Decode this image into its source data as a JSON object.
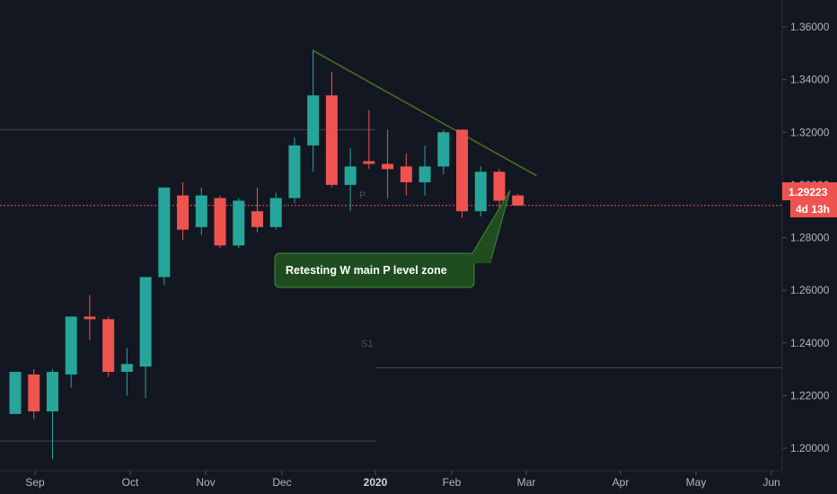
{
  "colors": {
    "background": "#131722",
    "up": "#26a69a",
    "down": "#ef5350",
    "text": "#b2b5be",
    "trendline": "#4a6b1f",
    "callout_fill": "#1f4d1f",
    "callout_border": "#3c8a3c",
    "level_line": "#4a4e59",
    "price_tag": "#ef5350"
  },
  "price_tag": {
    "price": "1.29223",
    "countdown": "4d 13h"
  },
  "annotation": {
    "text": "Retesting W main P level zone"
  },
  "pivot_labels": {
    "p": "P",
    "s1": "S1"
  },
  "chart_data": {
    "type": "candlestick",
    "symbol_period": "weekly",
    "y_axis": {
      "ticks": [
        "1.36000",
        "1.34000",
        "1.32000",
        "1.30000",
        "1.28000",
        "1.26000",
        "1.24000",
        "1.22000",
        "1.20000"
      ],
      "range": [
        1.19,
        1.369
      ],
      "side": "right"
    },
    "x_axis": {
      "ticks": [
        {
          "label": "Sep",
          "bold": false
        },
        {
          "label": "Oct",
          "bold": false
        },
        {
          "label": "Nov",
          "bold": false
        },
        {
          "label": "Dec",
          "bold": false
        },
        {
          "label": "2020",
          "bold": true
        },
        {
          "label": "Feb",
          "bold": false
        },
        {
          "label": "Mar",
          "bold": false
        },
        {
          "label": "Apr",
          "bold": false
        },
        {
          "label": "May",
          "bold": false
        },
        {
          "label": "Jun",
          "bold": false
        }
      ]
    },
    "candles": [
      {
        "week": "2019-08-19",
        "o": 1.213,
        "h": 1.229,
        "l": 1.213,
        "c": 1.229
      },
      {
        "week": "2019-08-26",
        "o": 1.228,
        "h": 1.23,
        "l": 1.211,
        "c": 1.214
      },
      {
        "week": "2019-09-02",
        "o": 1.214,
        "h": 1.23,
        "l": 1.1958,
        "c": 1.229
      },
      {
        "week": "2019-09-09",
        "o": 1.228,
        "h": 1.25,
        "l": 1.223,
        "c": 1.25
      },
      {
        "week": "2019-09-16",
        "o": 1.25,
        "h": 1.2582,
        "l": 1.241,
        "c": 1.249
      },
      {
        "week": "2019-09-23",
        "o": 1.249,
        "h": 1.25,
        "l": 1.227,
        "c": 1.229
      },
      {
        "week": "2019-09-30",
        "o": 1.229,
        "h": 1.238,
        "l": 1.22,
        "c": 1.232
      },
      {
        "week": "2019-10-07",
        "o": 1.231,
        "h": 1.265,
        "l": 1.219,
        "c": 1.265
      },
      {
        "week": "2019-10-14",
        "o": 1.265,
        "h": 1.299,
        "l": 1.262,
        "c": 1.299
      },
      {
        "week": "2019-10-21",
        "o": 1.296,
        "h": 1.301,
        "l": 1.279,
        "c": 1.283
      },
      {
        "week": "2019-10-28",
        "o": 1.284,
        "h": 1.299,
        "l": 1.281,
        "c": 1.296
      },
      {
        "week": "2019-11-04",
        "o": 1.295,
        "h": 1.296,
        "l": 1.276,
        "c": 1.277
      },
      {
        "week": "2019-11-11",
        "o": 1.277,
        "h": 1.295,
        "l": 1.276,
        "c": 1.294
      },
      {
        "week": "2019-11-18",
        "o": 1.29,
        "h": 1.299,
        "l": 1.282,
        "c": 1.284
      },
      {
        "week": "2019-11-25",
        "o": 1.284,
        "h": 1.297,
        "l": 1.283,
        "c": 1.295
      },
      {
        "week": "2019-12-02",
        "o": 1.295,
        "h": 1.318,
        "l": 1.293,
        "c": 1.315
      },
      {
        "week": "2019-12-09",
        "o": 1.315,
        "h": 1.3514,
        "l": 1.305,
        "c": 1.334
      },
      {
        "week": "2019-12-16",
        "o": 1.334,
        "h": 1.343,
        "l": 1.299,
        "c": 1.3
      },
      {
        "week": "2019-12-23",
        "o": 1.3,
        "h": 1.314,
        "l": 1.29,
        "c": 1.307
      },
      {
        "week": "2019-12-30",
        "o": 1.309,
        "h": 1.3284,
        "l": 1.306,
        "c": 1.308
      },
      {
        "week": "2020-01-06",
        "o": 1.308,
        "h": 1.321,
        "l": 1.295,
        "c": 1.306
      },
      {
        "week": "2020-01-13",
        "o": 1.307,
        "h": 1.312,
        "l": 1.296,
        "c": 1.301
      },
      {
        "week": "2020-01-20",
        "o": 1.301,
        "h": 1.315,
        "l": 1.296,
        "c": 1.307
      },
      {
        "week": "2020-01-27",
        "o": 1.307,
        "h": 1.321,
        "l": 1.304,
        "c": 1.32
      },
      {
        "week": "2020-02-03",
        "o": 1.321,
        "h": 1.321,
        "l": 1.2875,
        "c": 1.29
      },
      {
        "week": "2020-02-10",
        "o": 1.29,
        "h": 1.307,
        "l": 1.288,
        "c": 1.305
      },
      {
        "week": "2020-02-17",
        "o": 1.305,
        "h": 1.306,
        "l": 1.285,
        "c": 1.294
      },
      {
        "week": "2020-02-24",
        "o": 1.296,
        "h": 1.2965,
        "l": 1.292,
        "c": 1.2922
      }
    ],
    "trendline": [
      {
        "week": "2019-12-09",
        "price": 1.351
      },
      {
        "week": "2020-03-02",
        "price": 1.3035
      }
    ],
    "horizontal_lines": [
      {
        "name": "resistance",
        "price": 1.321
      },
      {
        "name": "pivot_p",
        "price": 1.2922
      },
      {
        "name": "pivot_s1",
        "price": 1.2305
      },
      {
        "name": "support",
        "price": 1.2027
      }
    ],
    "current_price": 1.29223
  }
}
